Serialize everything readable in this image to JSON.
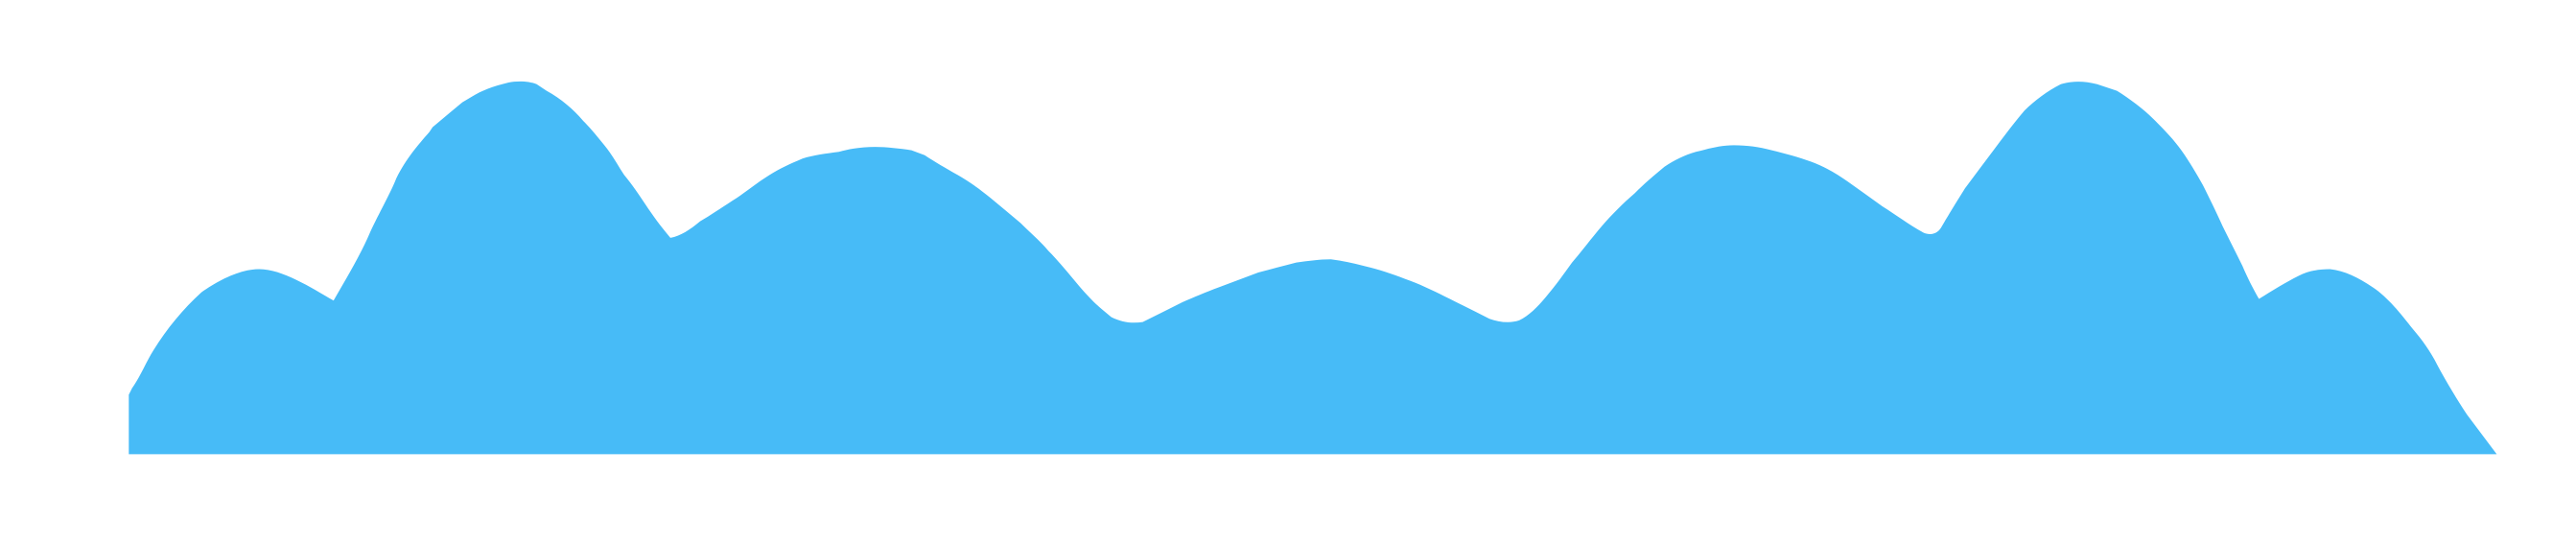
{
  "shape": {
    "fill_color": "#47BBF7",
    "background_color": "#FFFFFF"
  }
}
